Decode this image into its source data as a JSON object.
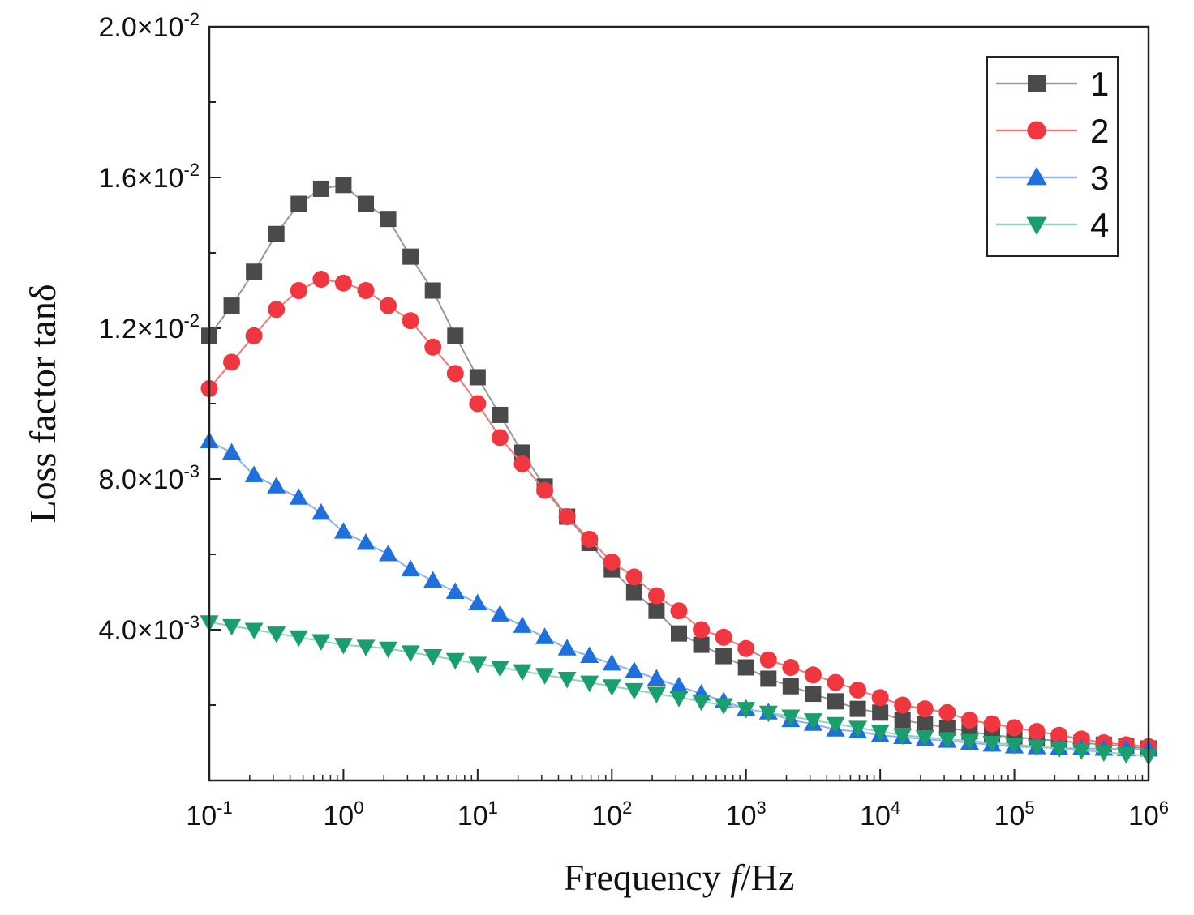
{
  "chart_data": {
    "type": "line",
    "xscale": "log",
    "xlim_exponent": [
      -1,
      6
    ],
    "ylim": [
      0,
      0.02
    ],
    "xlabel_prefix": "Frequency ",
    "xlabel_var": "f",
    "xlabel_suffix": "/Hz",
    "ylabel": "Loss factor tanδ",
    "x_tick_base": "10",
    "x_tick_exponents": [
      "-1",
      "0",
      "1",
      "2",
      "3",
      "4",
      "5",
      "6"
    ],
    "y_ticks": [
      {
        "value": 0.004,
        "mantissa": "4.0×10",
        "exp": "-3"
      },
      {
        "value": 0.008,
        "mantissa": "8.0×10",
        "exp": "-3"
      },
      {
        "value": 0.012,
        "mantissa": "1.2×10",
        "exp": "-2"
      },
      {
        "value": 0.016,
        "mantissa": "1.6×10",
        "exp": "-2"
      },
      {
        "value": 0.02,
        "mantissa": "2.0×10",
        "exp": "-2"
      }
    ],
    "legend_position": "top-right",
    "x": [
      0.1,
      0.1468,
      0.2154,
      0.3162,
      0.4642,
      0.6813,
      1.0,
      1.468,
      2.154,
      3.162,
      4.642,
      6.813,
      10,
      14.68,
      21.54,
      31.62,
      46.42,
      68.13,
      100,
      146.8,
      215.4,
      316.2,
      464.2,
      681.3,
      1000,
      1468,
      2154,
      3162,
      4642,
      6813,
      10000,
      14680,
      21540,
      31620,
      46420,
      68130,
      100000,
      146800,
      215400,
      316200,
      464200,
      681300,
      1000000
    ],
    "series": [
      {
        "name": "1",
        "color": "#4a4a4a",
        "line_color": "#999999",
        "marker": "square",
        "values": [
          0.0118,
          0.0126,
          0.0135,
          0.0145,
          0.0153,
          0.0157,
          0.0158,
          0.0153,
          0.0149,
          0.0139,
          0.013,
          0.0118,
          0.0107,
          0.0097,
          0.0087,
          0.0078,
          0.007,
          0.0063,
          0.0056,
          0.005,
          0.0045,
          0.0039,
          0.0036,
          0.0033,
          0.003,
          0.0027,
          0.0025,
          0.0023,
          0.0021,
          0.0019,
          0.0018,
          0.0016,
          0.0015,
          0.0014,
          0.0013,
          0.0012,
          0.00115,
          0.0011,
          0.00105,
          0.001,
          0.00095,
          0.0009,
          0.00085
        ]
      },
      {
        "name": "2",
        "color": "#f0363e",
        "line_color": "#f07a7a",
        "marker": "circle",
        "values": [
          0.0104,
          0.0111,
          0.0118,
          0.0125,
          0.013,
          0.0133,
          0.0132,
          0.013,
          0.0126,
          0.0122,
          0.0115,
          0.0108,
          0.01,
          0.0091,
          0.0084,
          0.0077,
          0.007,
          0.0064,
          0.0058,
          0.0054,
          0.0049,
          0.0045,
          0.004,
          0.0038,
          0.0035,
          0.0032,
          0.003,
          0.0028,
          0.0026,
          0.0024,
          0.0022,
          0.002,
          0.0019,
          0.0018,
          0.0016,
          0.0015,
          0.0014,
          0.0013,
          0.0012,
          0.0011,
          0.001,
          0.00095,
          0.0009
        ]
      },
      {
        "name": "3",
        "color": "#1f6fdc",
        "line_color": "#8ab4ee",
        "marker": "triangle-up",
        "values": [
          0.009,
          0.0087,
          0.0081,
          0.0078,
          0.0075,
          0.0071,
          0.0066,
          0.0063,
          0.006,
          0.0056,
          0.0053,
          0.005,
          0.0047,
          0.0044,
          0.0041,
          0.0038,
          0.0035,
          0.0033,
          0.0031,
          0.0029,
          0.0027,
          0.0025,
          0.0023,
          0.0021,
          0.0019,
          0.0018,
          0.0016,
          0.0015,
          0.00135,
          0.0013,
          0.0012,
          0.00115,
          0.0011,
          0.00105,
          0.001,
          0.00095,
          0.0009,
          0.00088,
          0.00086,
          0.00085,
          0.00084,
          0.00083,
          0.00082
        ]
      },
      {
        "name": "4",
        "color": "#1a9e6e",
        "line_color": "#8fd4b8",
        "marker": "triangle-down",
        "values": [
          0.0042,
          0.0041,
          0.004,
          0.0039,
          0.0038,
          0.0037,
          0.0036,
          0.00355,
          0.0035,
          0.0034,
          0.0033,
          0.0032,
          0.0031,
          0.003,
          0.0029,
          0.0028,
          0.0027,
          0.0026,
          0.0025,
          0.0024,
          0.0023,
          0.0022,
          0.0021,
          0.002,
          0.0019,
          0.0018,
          0.0017,
          0.0016,
          0.0015,
          0.0014,
          0.0013,
          0.0012,
          0.00115,
          0.0011,
          0.00105,
          0.001,
          0.00095,
          0.0009,
          0.00085,
          0.0008,
          0.00075,
          0.0007,
          0.00065
        ]
      }
    ]
  }
}
